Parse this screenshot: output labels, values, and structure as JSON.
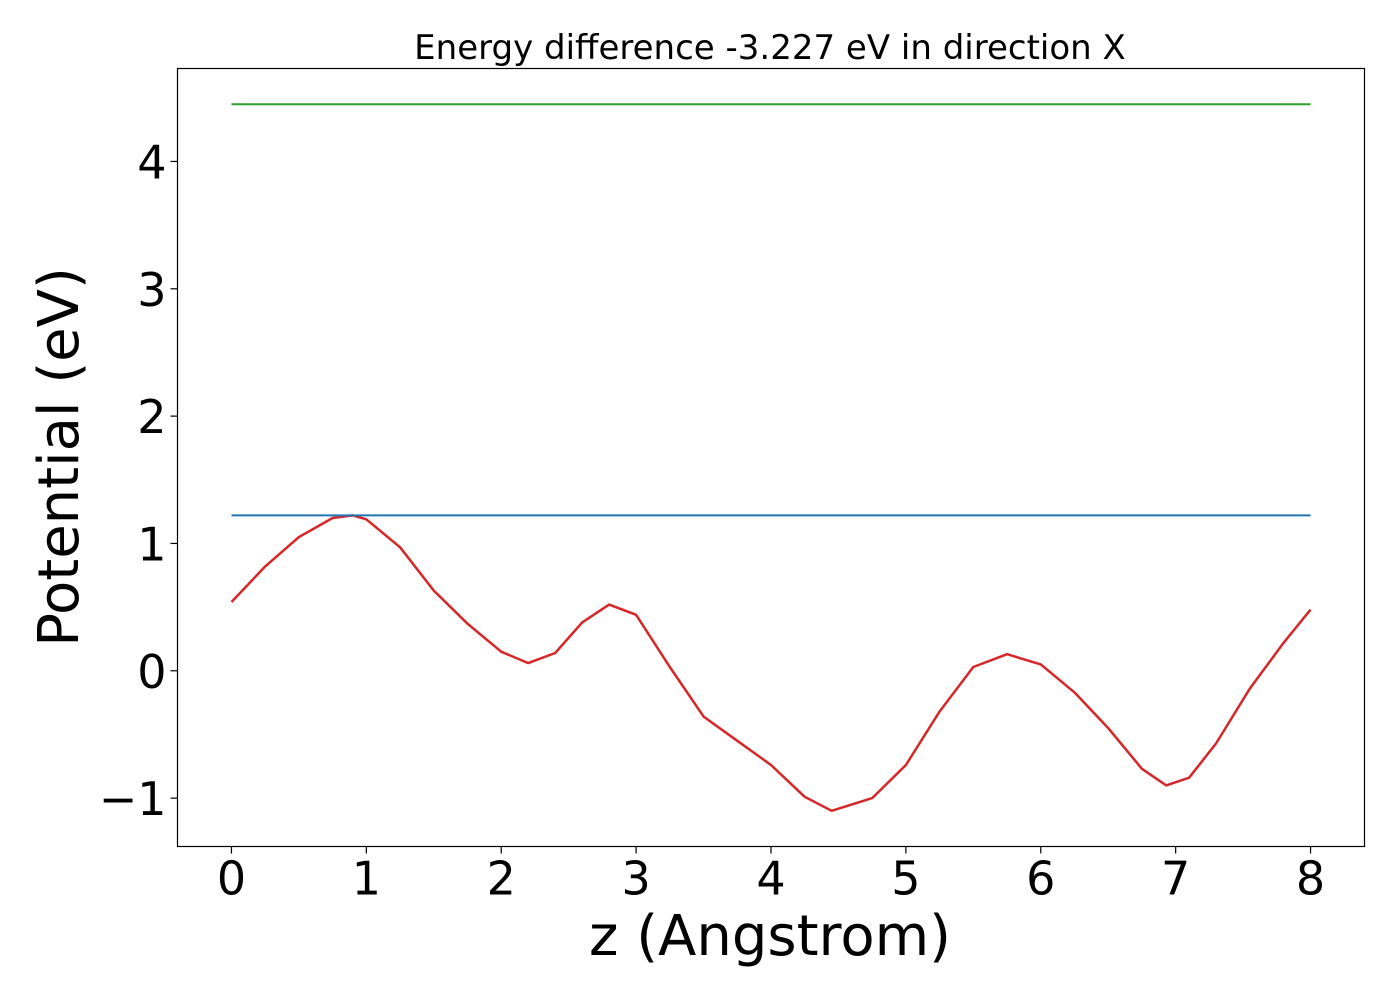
{
  "chart_data": {
    "type": "line",
    "title": "Energy difference -3.227 eV in direction X",
    "xlabel": "z (Angstrom)",
    "ylabel": "Potential (eV)",
    "xlim": [
      -0.4,
      8.4
    ],
    "ylim": [
      -1.38,
      4.73
    ],
    "xticks": [
      0,
      1,
      2,
      3,
      4,
      5,
      6,
      7,
      8
    ],
    "xtick_labels": [
      "0",
      "1",
      "2",
      "3",
      "4",
      "5",
      "6",
      "7",
      "8"
    ],
    "yticks": [
      -1,
      0,
      1,
      2,
      3,
      4
    ],
    "ytick_labels": [
      "−1",
      "0",
      "1",
      "2",
      "3",
      "4"
    ],
    "grid": false,
    "legend": "none",
    "series": [
      {
        "color": "#d62728",
        "x": [
          0,
          0.25,
          0.5,
          0.75,
          0.9,
          1.0,
          1.25,
          1.5,
          1.75,
          2.0,
          2.2,
          2.4,
          2.6,
          2.8,
          3.0,
          3.25,
          3.5,
          3.75,
          4.0,
          4.25,
          4.45,
          4.75,
          5.0,
          5.25,
          5.5,
          5.75,
          6.0,
          6.25,
          6.5,
          6.75,
          6.93,
          7.1,
          7.3,
          7.55,
          7.8,
          8.0
        ],
        "y": [
          0.54,
          0.82,
          1.05,
          1.2,
          1.22,
          1.19,
          0.97,
          0.63,
          0.37,
          0.15,
          0.06,
          0.14,
          0.38,
          0.52,
          0.44,
          0.03,
          -0.36,
          -0.55,
          -0.74,
          -0.99,
          -1.1,
          -1.0,
          -0.74,
          -0.32,
          0.03,
          0.13,
          0.05,
          -0.17,
          -0.45,
          -0.77,
          -0.9,
          -0.84,
          -0.57,
          -0.14,
          0.22,
          0.48
        ]
      },
      {
        "color": "#1f77b4",
        "x": [
          0,
          8
        ],
        "y": [
          1.22,
          1.22
        ]
      },
      {
        "color": "#2ca02c",
        "x": [
          0,
          8
        ],
        "y": [
          4.45,
          4.45
        ]
      }
    ]
  }
}
